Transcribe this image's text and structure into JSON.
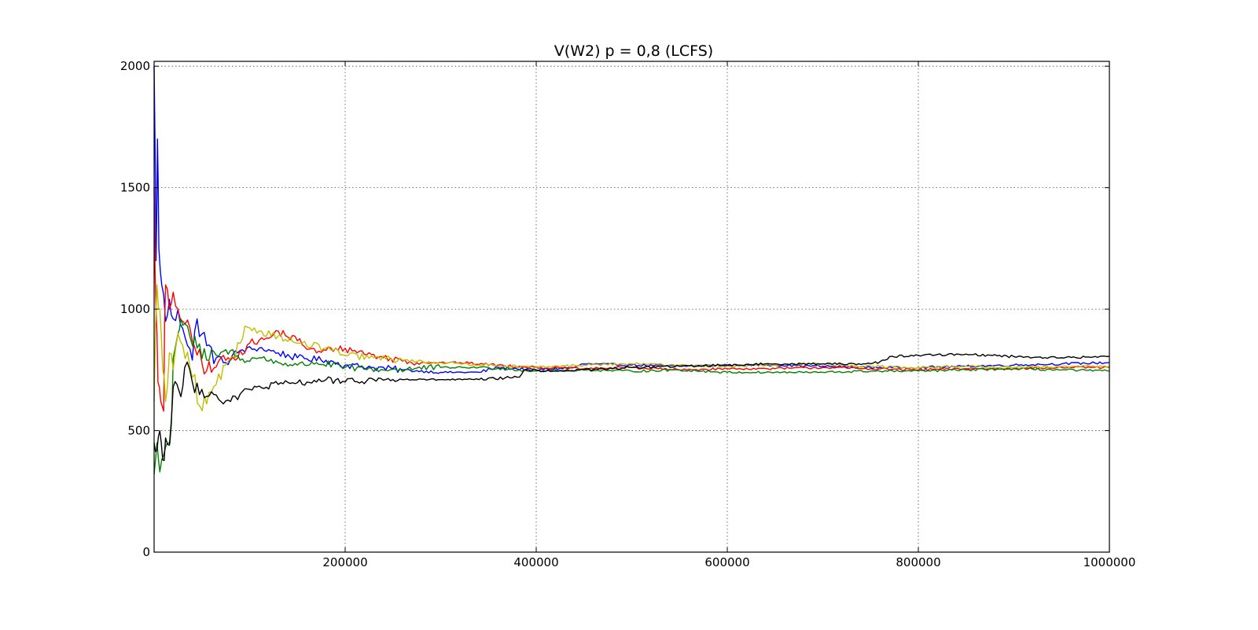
{
  "chart_data": {
    "type": "line",
    "title": "V(W2) p = 0,8 (LCFS)",
    "xlabel": "",
    "ylabel": "",
    "xlim": [
      0,
      1000000
    ],
    "ylim": [
      0,
      2020
    ],
    "grid": true,
    "x_ticks": [
      200000,
      400000,
      600000,
      800000,
      1000000
    ],
    "x_tick_labels": [
      "200000",
      "400000",
      "600000",
      "800000",
      "1000000"
    ],
    "y_ticks": [
      0,
      500,
      1000,
      1500,
      2000
    ],
    "y_tick_labels": [
      "0",
      "500",
      "1000",
      "1500",
      "2000"
    ],
    "series": [
      {
        "color": "#0000ff",
        "points": [
          [
            0,
            2000
          ],
          [
            2000,
            1200
          ],
          [
            3500,
            1700
          ],
          [
            5000,
            1250
          ],
          [
            8000,
            1100
          ],
          [
            12000,
            950
          ],
          [
            16000,
            1040
          ],
          [
            20000,
            960
          ],
          [
            25000,
            1000
          ],
          [
            30000,
            920
          ],
          [
            35000,
            850
          ],
          [
            40000,
            790
          ],
          [
            45000,
            960
          ],
          [
            55000,
            850
          ],
          [
            65000,
            800
          ],
          [
            75000,
            780
          ],
          [
            90000,
            830
          ],
          [
            110000,
            840
          ],
          [
            130000,
            820
          ],
          [
            150000,
            800
          ],
          [
            180000,
            790
          ],
          [
            200000,
            770
          ],
          [
            230000,
            760
          ],
          [
            260000,
            750
          ],
          [
            300000,
            740
          ],
          [
            340000,
            740
          ],
          [
            360000,
            760
          ],
          [
            400000,
            750
          ],
          [
            440000,
            760
          ],
          [
            450000,
            775
          ],
          [
            500000,
            770
          ],
          [
            550000,
            765
          ],
          [
            600000,
            770
          ],
          [
            650000,
            770
          ],
          [
            700000,
            765
          ],
          [
            750000,
            760
          ],
          [
            800000,
            760
          ],
          [
            850000,
            765
          ],
          [
            900000,
            770
          ],
          [
            950000,
            775
          ],
          [
            1000000,
            780
          ]
        ]
      },
      {
        "color": "#ff0000",
        "points": [
          [
            0,
            1500
          ],
          [
            2000,
            1000
          ],
          [
            4000,
            700
          ],
          [
            7000,
            620
          ],
          [
            10000,
            580
          ],
          [
            12000,
            1100
          ],
          [
            16000,
            1000
          ],
          [
            20000,
            1070
          ],
          [
            25000,
            1000
          ],
          [
            30000,
            950
          ],
          [
            40000,
            870
          ],
          [
            50000,
            780
          ],
          [
            60000,
            740
          ],
          [
            70000,
            800
          ],
          [
            80000,
            790
          ],
          [
            100000,
            860
          ],
          [
            120000,
            880
          ],
          [
            130000,
            910
          ],
          [
            150000,
            870
          ],
          [
            170000,
            820
          ],
          [
            190000,
            840
          ],
          [
            210000,
            830
          ],
          [
            240000,
            800
          ],
          [
            280000,
            780
          ],
          [
            320000,
            780
          ],
          [
            360000,
            770
          ],
          [
            400000,
            760
          ],
          [
            450000,
            755
          ],
          [
            500000,
            760
          ],
          [
            550000,
            750
          ],
          [
            600000,
            755
          ],
          [
            650000,
            755
          ],
          [
            700000,
            760
          ],
          [
            750000,
            755
          ],
          [
            800000,
            750
          ],
          [
            850000,
            755
          ],
          [
            900000,
            755
          ],
          [
            950000,
            760
          ],
          [
            1000000,
            760
          ]
        ]
      },
      {
        "color": "#008000",
        "points": [
          [
            0,
            320
          ],
          [
            3000,
            450
          ],
          [
            6000,
            330
          ],
          [
            10000,
            400
          ],
          [
            15000,
            450
          ],
          [
            18000,
            520
          ],
          [
            20000,
            800
          ],
          [
            25000,
            900
          ],
          [
            28000,
            960
          ],
          [
            32000,
            940
          ],
          [
            38000,
            880
          ],
          [
            45000,
            840
          ],
          [
            55000,
            790
          ],
          [
            65000,
            810
          ],
          [
            80000,
            830
          ],
          [
            90000,
            790
          ],
          [
            110000,
            800
          ],
          [
            130000,
            780
          ],
          [
            150000,
            770
          ],
          [
            170000,
            780
          ],
          [
            200000,
            760
          ],
          [
            240000,
            750
          ],
          [
            300000,
            760
          ],
          [
            350000,
            760
          ],
          [
            400000,
            745
          ],
          [
            450000,
            750
          ],
          [
            500000,
            745
          ],
          [
            550000,
            750
          ],
          [
            600000,
            740
          ],
          [
            650000,
            740
          ],
          [
            700000,
            740
          ],
          [
            750000,
            745
          ],
          [
            800000,
            745
          ],
          [
            850000,
            750
          ],
          [
            900000,
            755
          ],
          [
            950000,
            750
          ],
          [
            1000000,
            745
          ]
        ]
      },
      {
        "color": "#bfbf00",
        "points": [
          [
            0,
            620
          ],
          [
            3000,
            1100
          ],
          [
            6000,
            1000
          ],
          [
            9000,
            750
          ],
          [
            12000,
            620
          ],
          [
            16000,
            820
          ],
          [
            20000,
            750
          ],
          [
            25000,
            900
          ],
          [
            30000,
            850
          ],
          [
            40000,
            720
          ],
          [
            48000,
            600
          ],
          [
            55000,
            610
          ],
          [
            65000,
            690
          ],
          [
            75000,
            770
          ],
          [
            85000,
            800
          ],
          [
            95000,
            930
          ],
          [
            110000,
            910
          ],
          [
            130000,
            890
          ],
          [
            150000,
            860
          ],
          [
            180000,
            840
          ],
          [
            200000,
            810
          ],
          [
            230000,
            800
          ],
          [
            260000,
            790
          ],
          [
            300000,
            780
          ],
          [
            350000,
            770
          ],
          [
            400000,
            760
          ],
          [
            450000,
            770
          ],
          [
            500000,
            775
          ],
          [
            550000,
            770
          ],
          [
            600000,
            765
          ],
          [
            650000,
            770
          ],
          [
            700000,
            775
          ],
          [
            750000,
            765
          ],
          [
            800000,
            760
          ],
          [
            850000,
            765
          ],
          [
            900000,
            760
          ],
          [
            950000,
            765
          ],
          [
            1000000,
            765
          ]
        ]
      },
      {
        "color": "#000000",
        "points": [
          [
            0,
            450
          ],
          [
            3000,
            420
          ],
          [
            6000,
            500
          ],
          [
            9000,
            380
          ],
          [
            12000,
            470
          ],
          [
            16000,
            440
          ],
          [
            20000,
            680
          ],
          [
            24000,
            690
          ],
          [
            28000,
            640
          ],
          [
            32000,
            760
          ],
          [
            40000,
            700
          ],
          [
            50000,
            670
          ],
          [
            60000,
            660
          ],
          [
            70000,
            620
          ],
          [
            80000,
            620
          ],
          [
            90000,
            650
          ],
          [
            100000,
            670
          ],
          [
            130000,
            690
          ],
          [
            160000,
            700
          ],
          [
            180000,
            710
          ],
          [
            200000,
            700
          ],
          [
            230000,
            710
          ],
          [
            260000,
            710
          ],
          [
            300000,
            710
          ],
          [
            340000,
            710
          ],
          [
            380000,
            720
          ],
          [
            390000,
            750
          ],
          [
            420000,
            745
          ],
          [
            450000,
            750
          ],
          [
            500000,
            760
          ],
          [
            550000,
            765
          ],
          [
            600000,
            770
          ],
          [
            650000,
            775
          ],
          [
            700000,
            775
          ],
          [
            750000,
            775
          ],
          [
            765000,
            790
          ],
          [
            770000,
            805
          ],
          [
            800000,
            810
          ],
          [
            850000,
            815
          ],
          [
            900000,
            805
          ],
          [
            950000,
            800
          ],
          [
            1000000,
            805
          ]
        ]
      }
    ]
  }
}
